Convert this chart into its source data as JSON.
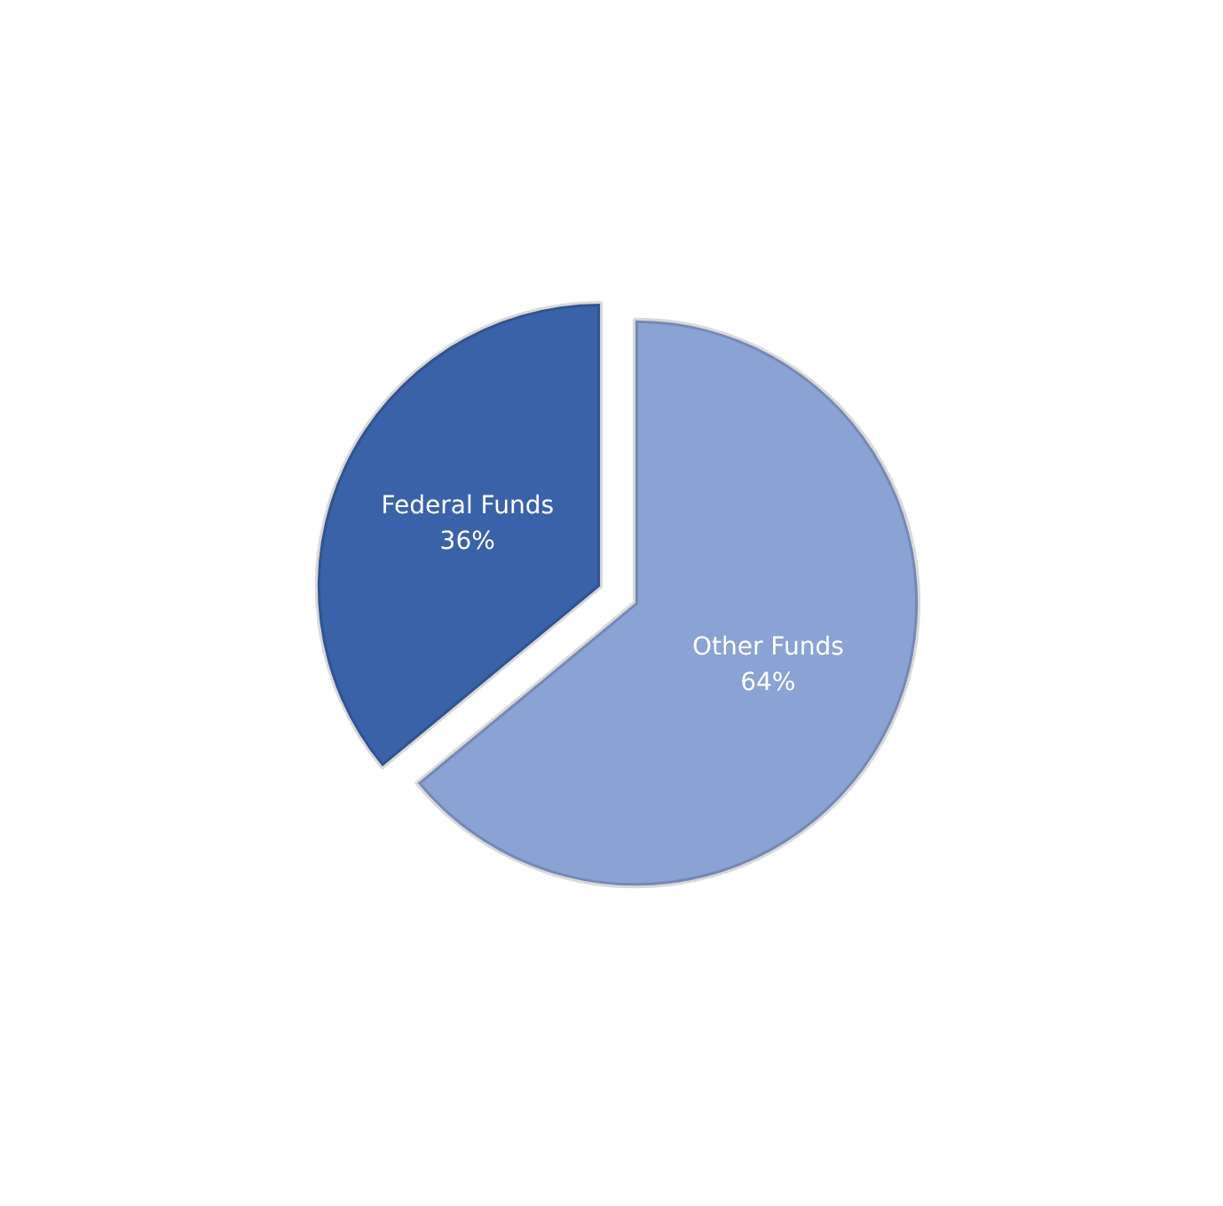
{
  "chart_data": {
    "type": "pie",
    "categories": [
      "Other Funds",
      "Federal Funds"
    ],
    "values": [
      64,
      36
    ],
    "colors": [
      "#8aa2d4",
      "#3a62a8"
    ],
    "value_labels": [
      "64%",
      "36%"
    ],
    "legend": false
  }
}
